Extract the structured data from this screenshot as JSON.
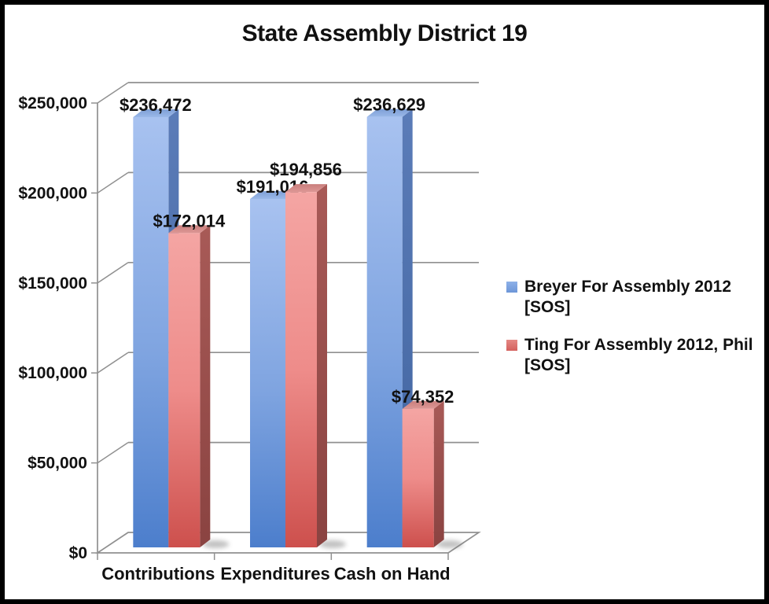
{
  "chart_data": {
    "type": "bar",
    "style": "3d-clustered-column",
    "title": "State Assembly District 19",
    "categories": [
      "Contributions",
      "Expenditures",
      "Cash on Hand"
    ],
    "series": [
      {
        "id": "breyer",
        "name": "Breyer For Assembly 2012 [SOS]",
        "color": "#6d96d8",
        "values": [
          236472,
          191016,
          236629
        ],
        "labels": [
          "$236,472",
          "$191,016",
          "$236,629"
        ]
      },
      {
        "id": "ting",
        "name": "Ting For Assembly 2012, Phil [SOS]",
        "color": "#d4615e",
        "values": [
          172014,
          194856,
          74352
        ],
        "labels": [
          "$172,014",
          "$194,856",
          "$74,352"
        ]
      }
    ],
    "y_ticks": [
      "$250,000",
      "$200,000",
      "$150,000",
      "$100,000",
      "$50,000",
      "$0"
    ],
    "ylim": [
      0,
      250000
    ],
    "grid": true,
    "legend_position": "right",
    "colors": {
      "gridline": "#909090",
      "axis": "#909090",
      "text": "#111111",
      "background": "#ffffff",
      "frame": "#000000"
    }
  }
}
